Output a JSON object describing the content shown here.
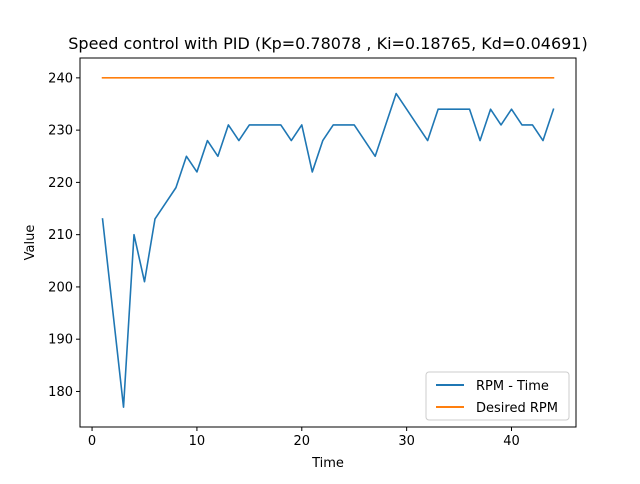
{
  "chart_data": {
    "type": "line",
    "title": "Speed control with PID (Kp=0.78078 , Ki=0.18765, Kd=0.04691)",
    "xlabel": "Time",
    "ylabel": "Value",
    "xlim": [
      -1.15,
      46.15
    ],
    "ylim": [
      173.2,
      243.8
    ],
    "xticks": [
      0,
      10,
      20,
      30,
      40
    ],
    "yticks": [
      180,
      190,
      200,
      210,
      220,
      230,
      240
    ],
    "grid": false,
    "legend_position": "lower right",
    "series": [
      {
        "name": "RPM - Time",
        "color": "#1f77b4",
        "x": [
          1,
          2,
          3,
          4,
          5,
          6,
          7,
          8,
          9,
          10,
          11,
          12,
          13,
          14,
          15,
          16,
          17,
          18,
          19,
          20,
          21,
          22,
          23,
          24,
          25,
          26,
          27,
          28,
          29,
          30,
          31,
          32,
          33,
          34,
          35,
          36,
          37,
          38,
          39,
          40,
          41,
          42,
          43,
          44
        ],
        "y": [
          213,
          195,
          177,
          210,
          201,
          213,
          216,
          219,
          225,
          222,
          228,
          225,
          231,
          228,
          231,
          231,
          231,
          231,
          228,
          231,
          222,
          228,
          231,
          231,
          231,
          228,
          225,
          231,
          237,
          234,
          231,
          228,
          234,
          234,
          234,
          234,
          228,
          234,
          231,
          234,
          231,
          231,
          228,
          234
        ]
      },
      {
        "name": "Desired RPM",
        "color": "#ff7f0e",
        "x": [
          1,
          44
        ],
        "y": [
          240,
          240
        ]
      }
    ]
  }
}
